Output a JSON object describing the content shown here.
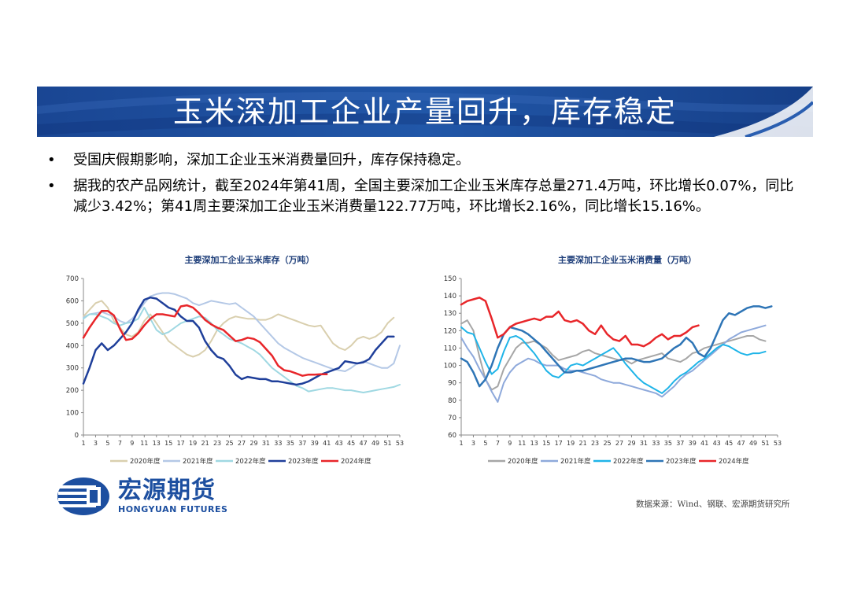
{
  "slide": {
    "title": "玉米深加工企业产量回升，库存稳定",
    "bullets": [
      {
        "marker": "•",
        "text": "受国庆假期影响，深加工企业玉米消费量回升，库存保持稳定。"
      },
      {
        "marker": "•",
        "text": "据我的农产品网统计，截至2024年第41周，全国主要深加工企业玉米库存总量271.4万吨，环比增长0.07%，同比减少3.42%；第41周主要深加工企业玉米消费量122.77万吨，环比增长2.16%，同比增长15.16%。"
      }
    ],
    "source": "数据来源：Wind、钢联、宏源期货研究所",
    "logo": {
      "name_cn": "宏源期货",
      "name_en": "HONGYUAN FUTURES"
    },
    "colors": {
      "banner": "#1e4f9e",
      "banner_dark": "#17408a"
    }
  },
  "chart_data": [
    {
      "type": "line",
      "title": "主要深加工企业玉米库存（万吨）",
      "xlabel": "",
      "ylabel": "",
      "ylim": [
        0,
        700
      ],
      "yticks": [
        0,
        100,
        200,
        300,
        400,
        500,
        600,
        700
      ],
      "x_week_range": [
        1,
        53
      ],
      "x_ticks": [
        "1",
        "3",
        "5",
        "7",
        "9",
        "11",
        "13",
        "15",
        "17",
        "19",
        "21",
        "23",
        "25",
        "27",
        "29",
        "31",
        "33",
        "35",
        "37",
        "39",
        "41",
        "43",
        "45",
        "47",
        "49",
        "51",
        "53"
      ],
      "grid": false,
      "legend_position": "bottom",
      "series": [
        {
          "name": "2020年度",
          "color": "#d9cfae",
          "width": 2,
          "start_week": 1,
          "values": [
            530,
            560,
            590,
            600,
            570,
            510,
            480,
            450,
            440,
            460,
            510,
            540,
            500,
            460,
            420,
            400,
            380,
            360,
            350,
            360,
            380,
            420,
            470,
            500,
            520,
            530,
            525,
            520,
            520,
            515,
            515,
            525,
            540,
            530,
            520,
            510,
            500,
            490,
            485,
            490,
            450,
            410,
            390,
            380,
            400,
            430,
            440,
            430,
            440,
            460,
            500,
            525
          ]
        },
        {
          "name": "2021年度",
          "color": "#b4c8e6",
          "width": 2,
          "start_week": 1,
          "values": [
            525,
            540,
            545,
            550,
            540,
            530,
            510,
            500,
            520,
            550,
            590,
            620,
            630,
            635,
            635,
            630,
            620,
            610,
            590,
            580,
            590,
            600,
            595,
            590,
            585,
            590,
            570,
            550,
            530,
            500,
            470,
            440,
            410,
            390,
            375,
            360,
            345,
            335,
            325,
            315,
            305,
            295,
            290,
            285,
            300,
            320,
            330,
            320,
            310,
            300,
            300,
            320,
            400
          ]
        },
        {
          "name": "2022年度",
          "color": "#9fd8e2",
          "width": 2,
          "start_week": 1,
          "values": [
            520,
            540,
            540,
            530,
            520,
            500,
            490,
            500,
            505,
            520,
            570,
            520,
            470,
            450,
            460,
            480,
            500,
            510,
            520,
            530,
            525,
            500,
            470,
            450,
            430,
            420,
            410,
            395,
            380,
            360,
            330,
            300,
            280,
            260,
            240,
            220,
            210,
            195,
            200,
            205,
            210,
            210,
            205,
            200,
            200,
            195,
            190,
            195,
            200,
            205,
            210,
            215,
            225
          ]
        },
        {
          "name": "2023年度",
          "color": "#1f3f9a",
          "width": 2.5,
          "start_week": 1,
          "values": [
            230,
            300,
            380,
            410,
            380,
            400,
            430,
            460,
            500,
            560,
            605,
            615,
            610,
            590,
            570,
            560,
            530,
            510,
            510,
            480,
            420,
            380,
            350,
            340,
            310,
            270,
            250,
            260,
            255,
            250,
            250,
            240,
            240,
            235,
            230,
            225,
            230,
            240,
            255,
            270,
            280,
            290,
            300,
            330,
            325,
            320,
            325,
            340,
            380,
            410,
            440,
            440
          ]
        },
        {
          "name": "2024年度",
          "color": "#e8262a",
          "width": 2.5,
          "start_week": 1,
          "values": [
            435,
            480,
            520,
            555,
            555,
            535,
            475,
            425,
            430,
            455,
            490,
            520,
            540,
            540,
            535,
            530,
            575,
            580,
            570,
            545,
            515,
            495,
            480,
            470,
            445,
            420,
            425,
            435,
            430,
            415,
            385,
            355,
            310,
            290,
            285,
            275,
            265,
            270,
            270,
            272,
            272
          ]
        }
      ]
    },
    {
      "type": "line",
      "title": "主要深加工企业玉米消费量（万吨）",
      "xlabel": "",
      "ylabel": "",
      "ylim": [
        60,
        150
      ],
      "yticks": [
        60,
        70,
        80,
        90,
        100,
        110,
        120,
        130,
        140,
        150
      ],
      "x_week_range": [
        1,
        53
      ],
      "x_ticks": [
        "1",
        "3",
        "5",
        "7",
        "9",
        "11",
        "13",
        "15",
        "17",
        "19",
        "21",
        "23",
        "25",
        "27",
        "29",
        "31",
        "33",
        "35",
        "37",
        "39",
        "41",
        "43",
        "45",
        "47",
        "49",
        "51",
        "53"
      ],
      "grid": false,
      "legend_position": "bottom",
      "series": [
        {
          "name": "2020年度",
          "color": "#a6a6a6",
          "width": 2,
          "start_week": 1,
          "values": [
            124,
            126,
            120,
            105,
            92,
            86,
            88,
            98,
            104,
            110,
            113,
            113,
            114,
            112,
            110,
            106,
            103,
            104,
            105,
            106,
            108,
            109,
            107,
            106,
            105,
            104,
            103,
            103,
            101,
            103,
            104,
            105,
            106,
            107,
            104,
            103,
            102,
            104,
            107,
            108,
            110,
            111,
            112,
            113,
            114,
            115,
            116,
            117,
            117,
            115,
            114
          ]
        },
        {
          "name": "2021年度",
          "color": "#8ea9db",
          "width": 2,
          "start_week": 1,
          "values": [
            116,
            110,
            105,
            98,
            92,
            85,
            79,
            90,
            96,
            100,
            102,
            104,
            103,
            101,
            100,
            100,
            100,
            98,
            97,
            97,
            96,
            95,
            94,
            92,
            91,
            90,
            90,
            89,
            88,
            87,
            86,
            85,
            84,
            82,
            85,
            88,
            92,
            95,
            97,
            100,
            103,
            106,
            109,
            112,
            115,
            117,
            119,
            120,
            121,
            122,
            123
          ]
        },
        {
          "name": "2022年度",
          "color": "#1fb4e8",
          "width": 2,
          "start_week": 1,
          "values": [
            122,
            119,
            118,
            110,
            102,
            95,
            98,
            108,
            116,
            117,
            115,
            111,
            107,
            102,
            97,
            94,
            93,
            96,
            100,
            101,
            100,
            102,
            104,
            106,
            108,
            110,
            106,
            101,
            97,
            93,
            90,
            88,
            86,
            84,
            87,
            91,
            94,
            96,
            99,
            102,
            104,
            107,
            110,
            112,
            111,
            109,
            107,
            106,
            107,
            107,
            108
          ]
        },
        {
          "name": "2023年度",
          "color": "#2e75b6",
          "width": 2.5,
          "start_week": 1,
          "values": [
            104,
            102,
            96,
            88,
            92,
            100,
            110,
            118,
            122,
            121,
            120,
            118,
            115,
            112,
            108,
            104,
            100,
            96,
            96,
            97,
            97,
            98,
            99,
            100,
            101,
            102,
            103,
            104,
            104,
            103,
            102,
            102,
            103,
            104,
            107,
            110,
            112,
            116,
            113,
            107,
            105,
            110,
            118,
            126,
            130,
            129,
            131,
            133,
            134,
            134,
            133,
            134
          ]
        },
        {
          "name": "2024年度",
          "color": "#e8262a",
          "width": 2.5,
          "start_week": 1,
          "values": [
            135,
            137,
            138,
            139,
            137,
            127,
            116,
            118,
            122,
            124,
            125,
            126,
            127,
            126,
            128,
            128,
            131,
            126,
            125,
            126,
            124,
            120,
            118,
            123,
            118,
            115,
            114,
            117,
            112,
            112,
            111,
            113,
            116,
            118,
            115,
            117,
            117,
            119,
            122,
            123
          ]
        }
      ]
    }
  ]
}
